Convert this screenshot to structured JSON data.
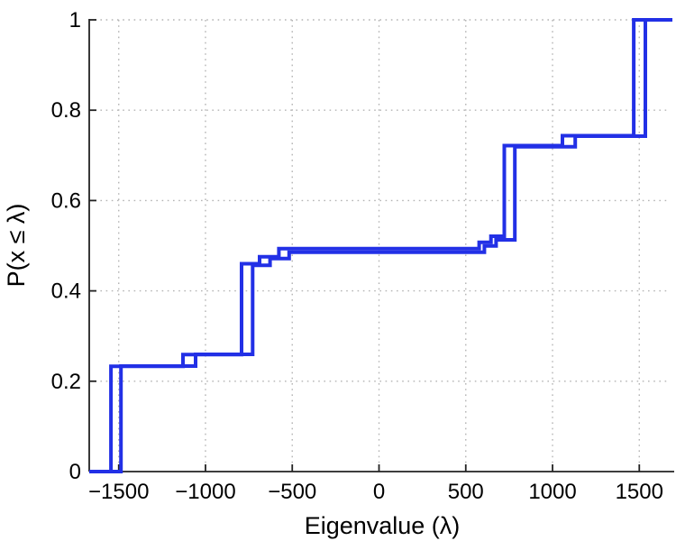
{
  "figure": {
    "background": "#ffffff",
    "axis_color": "#222222",
    "grid_color": "#b4b4b4",
    "text_color": "#000000"
  },
  "chart_data": {
    "type": "line",
    "subtype": "empirical-cdf-step",
    "title": "",
    "xlabel": "Eigenvalue (λ)",
    "ylabel": "P(x ≤ λ)",
    "xlim": [
      -1670,
      1670
    ],
    "ylim": [
      0,
      1
    ],
    "grid": true,
    "grid_style": "dotted",
    "legend": "none",
    "line_color": "#2230e6",
    "line_width": 4,
    "x_tick_values": [
      -1500,
      -1000,
      -500,
      0,
      500,
      1000,
      1500
    ],
    "x_tick_labels": [
      "−1500",
      "−1000",
      "−500",
      "0",
      "500",
      "1000",
      "1500"
    ],
    "y_tick_values": [
      0,
      0.2,
      0.4,
      0.6,
      0.8,
      1
    ],
    "y_tick_labels": [
      "0",
      "0.2",
      "0.4",
      "0.6",
      "0.8",
      "1"
    ],
    "series": [
      {
        "name": "ecdf-curve-1",
        "start_level": 0,
        "steps": [
          [
            -1545,
            0.233
          ],
          [
            -1130,
            0.259
          ],
          [
            -792,
            0.46
          ],
          [
            -688,
            0.4755
          ],
          [
            -577,
            0.4935
          ],
          [
            577,
            0.5075
          ],
          [
            645,
            0.521
          ],
          [
            722,
            0.7215
          ],
          [
            1057,
            0.7435
          ],
          [
            1468,
            1.0
          ]
        ]
      },
      {
        "name": "ecdf-curve-2",
        "start_level": 0,
        "steps": [
          [
            -1487,
            0.2335
          ],
          [
            -1057,
            0.2595
          ],
          [
            -728,
            0.4565
          ],
          [
            -628,
            0.4715
          ],
          [
            -518,
            0.4855
          ],
          [
            607,
            0.4995
          ],
          [
            675,
            0.513
          ],
          [
            783,
            0.719
          ],
          [
            1131,
            0.7425
          ],
          [
            1535,
            1.0
          ]
        ]
      }
    ]
  }
}
